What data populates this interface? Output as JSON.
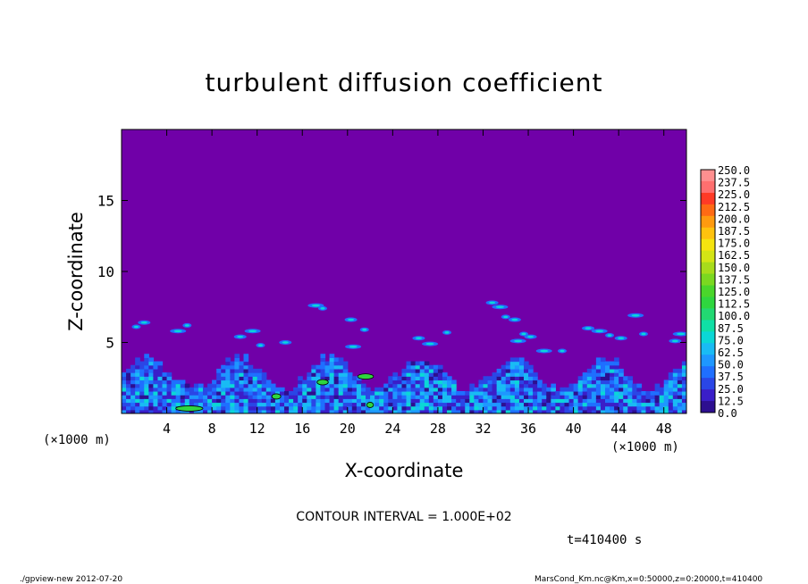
{
  "chart_data": {
    "type": "heatmap",
    "title": "turbulent diffusion coefficient",
    "xlabel": "X-coordinate",
    "ylabel": "Z-coordinate",
    "x_unit_left": "(×1000 m)",
    "x_unit_right": "(×1000 m)",
    "xlim": [
      0,
      50
    ],
    "ylim": [
      0,
      20
    ],
    "x_ticks": [
      4,
      8,
      12,
      16,
      20,
      24,
      28,
      32,
      36,
      40,
      44,
      48
    ],
    "y_ticks": [
      5,
      10,
      15
    ],
    "colorbar": {
      "levels": [
        "0.0",
        "12.5",
        "25.0",
        "37.5",
        "50.0",
        "62.5",
        "75.0",
        "87.5",
        "100.0",
        "112.5",
        "125.0",
        "137.5",
        "150.0",
        "162.5",
        "175.0",
        "187.5",
        "200.0",
        "212.5",
        "225.0",
        "237.5",
        "250.0"
      ],
      "colors": [
        "#2d0f90",
        "#3a1ec8",
        "#2a46e6",
        "#1f6fff",
        "#1e97ff",
        "#19bbf4",
        "#0bd7d6",
        "#10dfa6",
        "#22d872",
        "#2fd63f",
        "#4ad62b",
        "#7bd820",
        "#a8dc1b",
        "#d4e515",
        "#f5e40f",
        "#ffc20e",
        "#ff9a0f",
        "#ff6a14",
        "#ff3a26",
        "#ff6f6f",
        "#ff8f8f"
      ]
    },
    "background_value_color": "#7000a8",
    "contour_interval": "CONTOUR INTERVAL = 1.000E+02",
    "time_label": "t=410400 s",
    "grid": false
  },
  "footer": {
    "left": "./gpview-new   2012-07-20",
    "right": "MarsCond_Km.nc@Km,x=0:50000,z=0:20000,t=410400"
  }
}
